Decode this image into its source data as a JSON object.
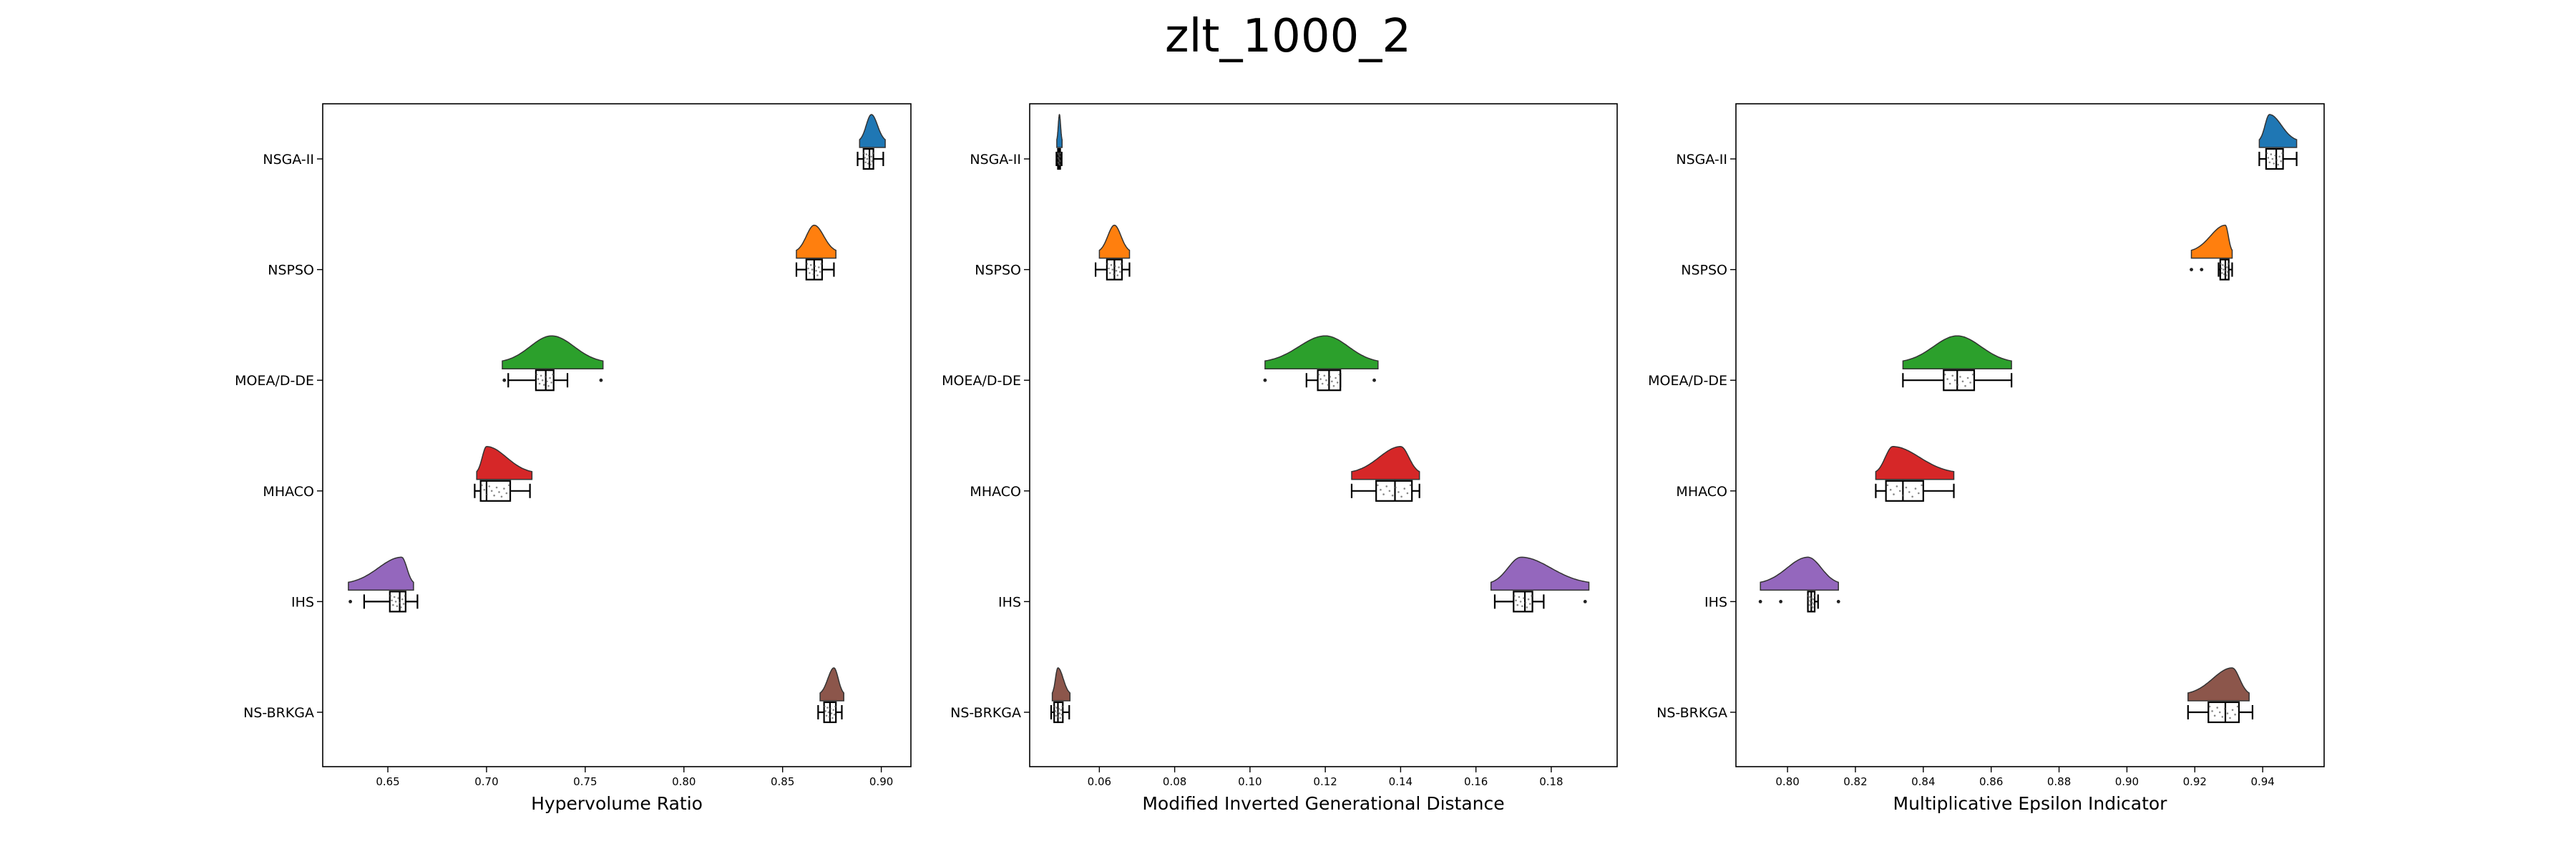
{
  "title": "zlt_1000_2",
  "categories": [
    "NSGA-II",
    "NSPSO",
    "MOEA/D-DE",
    "MHACO",
    "IHS",
    "NS-BRKGA"
  ],
  "colors": [
    "#1f77b4",
    "#ff7f0e",
    "#2ca02c",
    "#d62728",
    "#9467bd",
    "#8c564b"
  ],
  "chart_data": [
    {
      "type": "raincloud",
      "xlabel": "Hypervolume Ratio",
      "xlim": [
        0.617,
        0.915
      ],
      "xticks": [
        0.65,
        0.7,
        0.75,
        0.8,
        0.85,
        0.9
      ],
      "xtick_labels": [
        "0.65",
        "0.70",
        "0.75",
        "0.80",
        "0.85",
        "0.90"
      ],
      "categories": [
        "NSGA-II",
        "NSPSO",
        "MOEA/D-DE",
        "MHACO",
        "IHS",
        "NS-BRKGA"
      ],
      "series": [
        {
          "name": "NSGA-II",
          "min": 0.888,
          "q1": 0.891,
          "median": 0.894,
          "q3": 0.896,
          "max": 0.901,
          "outliers": [],
          "kde_range": [
            0.889,
            0.902
          ],
          "kde_peak": 0.895
        },
        {
          "name": "NSPSO",
          "min": 0.857,
          "q1": 0.862,
          "median": 0.866,
          "q3": 0.87,
          "max": 0.876,
          "outliers": [],
          "kde_range": [
            0.857,
            0.877
          ],
          "kde_peak": 0.866
        },
        {
          "name": "MOEA/D-DE",
          "min": 0.711,
          "q1": 0.725,
          "median": 0.73,
          "q3": 0.734,
          "max": 0.741,
          "outliers": [
            0.709,
            0.758
          ],
          "kde_range": [
            0.708,
            0.759
          ],
          "kde_peak": 0.733
        },
        {
          "name": "MHACO",
          "min": 0.694,
          "q1": 0.697,
          "median": 0.7,
          "q3": 0.712,
          "max": 0.722,
          "outliers": [],
          "kde_range": [
            0.695,
            0.723
          ],
          "kde_peak": 0.7
        },
        {
          "name": "IHS",
          "min": 0.638,
          "q1": 0.651,
          "median": 0.656,
          "q3": 0.659,
          "max": 0.665,
          "outliers": [
            0.631
          ],
          "kde_range": [
            0.63,
            0.663
          ],
          "kde_peak": 0.657
        },
        {
          "name": "NS-BRKGA",
          "min": 0.868,
          "q1": 0.871,
          "median": 0.874,
          "q3": 0.877,
          "max": 0.88,
          "outliers": [],
          "kde_range": [
            0.869,
            0.881
          ],
          "kde_peak": 0.876
        }
      ]
    },
    {
      "type": "raincloud",
      "xlabel": "Modified Inverted Generational Distance",
      "xlim": [
        0.0415,
        0.1975
      ],
      "xticks": [
        0.06,
        0.08,
        0.1,
        0.12,
        0.14,
        0.16,
        0.18
      ],
      "xtick_labels": [
        "0.06",
        "0.08",
        "0.10",
        "0.12",
        "0.14",
        "0.16",
        "0.18"
      ],
      "categories": [
        "NSGA-II",
        "NSPSO",
        "MOEA/D-DE",
        "MHACO",
        "IHS",
        "NS-BRKGA"
      ],
      "series": [
        {
          "name": "NSGA-II",
          "min": 0.0486,
          "q1": 0.049,
          "median": 0.0493,
          "q3": 0.0496,
          "max": 0.05,
          "outliers": [],
          "kde_range": [
            0.0487,
            0.0501
          ],
          "kde_peak": 0.0494
        },
        {
          "name": "NSPSO",
          "min": 0.059,
          "q1": 0.062,
          "median": 0.064,
          "q3": 0.066,
          "max": 0.068,
          "outliers": [],
          "kde_range": [
            0.06,
            0.068
          ],
          "kde_peak": 0.064
        },
        {
          "name": "MOEA/D-DE",
          "min": 0.115,
          "q1": 0.118,
          "median": 0.121,
          "q3": 0.124,
          "max": 0.124,
          "outliers": [
            0.104,
            0.133
          ],
          "kde_range": [
            0.104,
            0.134
          ],
          "kde_peak": 0.12
        },
        {
          "name": "MHACO",
          "min": 0.127,
          "q1": 0.1335,
          "median": 0.1385,
          "q3": 0.143,
          "max": 0.145,
          "outliers": [],
          "kde_range": [
            0.127,
            0.145
          ],
          "kde_peak": 0.14
        },
        {
          "name": "IHS",
          "min": 0.165,
          "q1": 0.17,
          "median": 0.173,
          "q3": 0.175,
          "max": 0.178,
          "outliers": [
            0.189
          ],
          "kde_range": [
            0.164,
            0.19
          ],
          "kde_peak": 0.172
        },
        {
          "name": "NS-BRKGA",
          "min": 0.0472,
          "q1": 0.048,
          "median": 0.049,
          "q3": 0.0503,
          "max": 0.052,
          "outliers": [],
          "kde_range": [
            0.0475,
            0.0522
          ],
          "kde_peak": 0.049
        }
      ]
    },
    {
      "type": "raincloud",
      "xlabel": "Multiplicative Epsilon Indicator",
      "xlim": [
        0.7848,
        0.9581
      ],
      "xticks": [
        0.8,
        0.82,
        0.84,
        0.86,
        0.88,
        0.9,
        0.92,
        0.94
      ],
      "xtick_labels": [
        "0.80",
        "0.82",
        "0.84",
        "0.86",
        "0.88",
        "0.90",
        "0.92",
        "0.94"
      ],
      "categories": [
        "NSGA-II",
        "NSPSO",
        "MOEA/D-DE",
        "MHACO",
        "IHS",
        "NS-BRKGA"
      ],
      "series": [
        {
          "name": "NSGA-II",
          "min": 0.939,
          "q1": 0.941,
          "median": 0.944,
          "q3": 0.946,
          "max": 0.95,
          "outliers": [],
          "kde_range": [
            0.939,
            0.95
          ],
          "kde_peak": 0.942
        },
        {
          "name": "NSPSO",
          "min": 0.927,
          "q1": 0.9275,
          "median": 0.929,
          "q3": 0.93,
          "max": 0.931,
          "outliers": [
            0.919,
            0.922
          ],
          "kde_range": [
            0.919,
            0.931
          ],
          "kde_peak": 0.929
        },
        {
          "name": "MOEA/D-DE",
          "min": 0.834,
          "q1": 0.846,
          "median": 0.85,
          "q3": 0.855,
          "max": 0.866,
          "outliers": [],
          "kde_range": [
            0.834,
            0.866
          ],
          "kde_peak": 0.85
        },
        {
          "name": "MHACO",
          "min": 0.826,
          "q1": 0.829,
          "median": 0.834,
          "q3": 0.84,
          "max": 0.849,
          "outliers": [],
          "kde_range": [
            0.826,
            0.849
          ],
          "kde_peak": 0.831
        },
        {
          "name": "IHS",
          "min": 0.806,
          "q1": 0.806,
          "median": 0.807,
          "q3": 0.808,
          "max": 0.809,
          "outliers": [
            0.792,
            0.798,
            0.815
          ],
          "kde_range": [
            0.792,
            0.815
          ],
          "kde_peak": 0.806
        },
        {
          "name": "NS-BRKGA",
          "min": 0.918,
          "q1": 0.924,
          "median": 0.929,
          "q3": 0.933,
          "max": 0.937,
          "outliers": [],
          "kde_range": [
            0.918,
            0.936
          ],
          "kde_peak": 0.931
        }
      ]
    }
  ]
}
